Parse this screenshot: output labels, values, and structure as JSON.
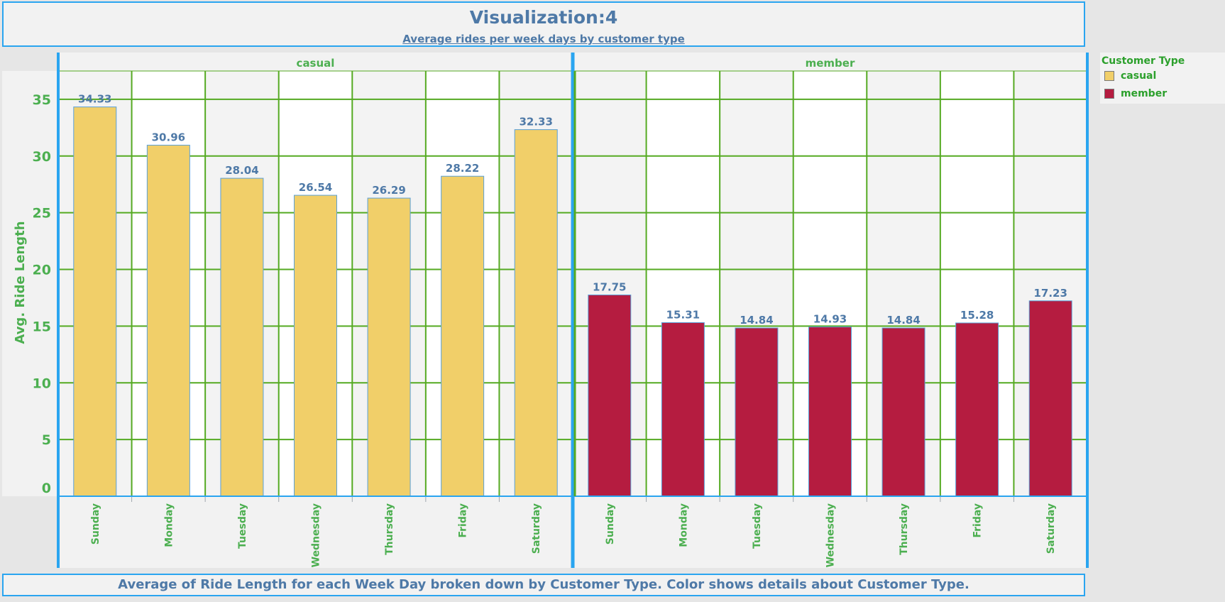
{
  "header": {
    "title": "Visualization:4",
    "subtitle": "Average rides per week days by customer type"
  },
  "caption": "Average of Ride Length for each Week Day broken down by Customer Type.  Color shows details about Customer Type.",
  "legend": {
    "title": "Customer Type",
    "items": [
      {
        "label": "casual",
        "color": "#f1cf69"
      },
      {
        "label": "member",
        "color": "#b51c40"
      }
    ]
  },
  "chart_data": {
    "type": "bar",
    "ylabel": "Avg. Ride Length",
    "ylim": [
      0,
      37.5
    ],
    "yticks": [
      0,
      5,
      10,
      15,
      20,
      25,
      30,
      35
    ],
    "grid": true,
    "legend_position": "top-right",
    "panels": [
      {
        "name": "casual",
        "color": "#f1cf69",
        "categories": [
          "Sunday",
          "Monday",
          "Tuesday",
          "Wednesday",
          "Thursday",
          "Friday",
          "Saturday"
        ],
        "values": [
          34.33,
          30.96,
          28.04,
          26.54,
          26.29,
          28.22,
          32.33
        ]
      },
      {
        "name": "member",
        "color": "#b51c40",
        "categories": [
          "Sunday",
          "Monday",
          "Tuesday",
          "Wednesday",
          "Thursday",
          "Friday",
          "Saturday"
        ],
        "values": [
          17.75,
          15.31,
          14.84,
          14.93,
          14.84,
          15.28,
          17.23
        ]
      }
    ],
    "colors": {
      "grid": "#55aa22",
      "axis_text": "#4caf50",
      "data_label": "#4e79a7",
      "frame": "#2aa5f0",
      "band": "#f3f3f3"
    }
  }
}
